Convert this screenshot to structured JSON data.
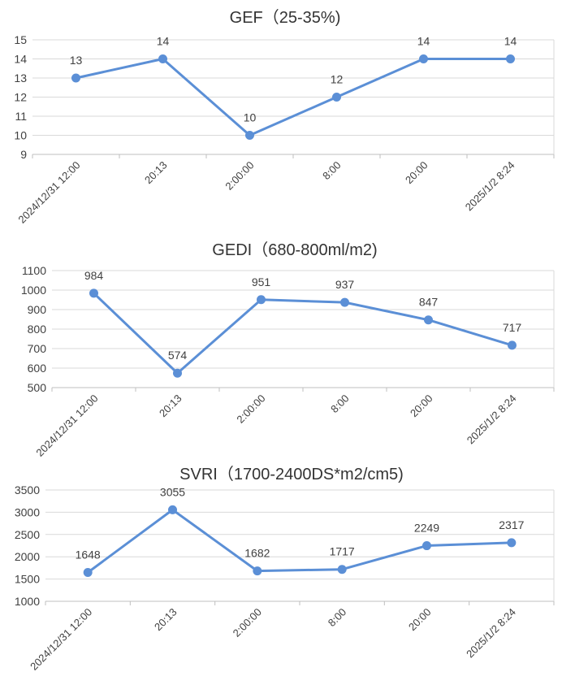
{
  "colors": {
    "series": "#5b8fd6"
  },
  "chart_data": [
    {
      "type": "line",
      "title": "GEF（25-35%)",
      "categories": [
        "2024/12/31 12:00",
        "20:13",
        "2:00:00",
        "8:00",
        "20:00",
        "2025/1/2 8:24"
      ],
      "series": [
        {
          "name": "GEF",
          "values": [
            13,
            14,
            10,
            12,
            14,
            14
          ]
        }
      ],
      "data_labels": [
        "13",
        "14",
        "10",
        "12",
        "14",
        "14"
      ],
      "ylim": [
        9,
        15
      ],
      "yticks": [
        "9",
        "10",
        "11",
        "12",
        "13",
        "14",
        "15"
      ],
      "xlabel": "",
      "ylabel": "",
      "grid": true,
      "legend": "none"
    },
    {
      "type": "line",
      "title": "GEDI（680-800ml/m2)",
      "categories": [
        "2024/12/31 12:00",
        "20:13",
        "2:00:00",
        "8:00",
        "20:00",
        "2025/1/2 8:24"
      ],
      "series": [
        {
          "name": "GEDI",
          "values": [
            984,
            574,
            951,
            937,
            847,
            717
          ]
        }
      ],
      "data_labels": [
        "984",
        "574",
        "951",
        "937",
        "847",
        "717"
      ],
      "ylim": [
        500,
        1100
      ],
      "yticks": [
        "500",
        "600",
        "700",
        "800",
        "900",
        "1000",
        "1100"
      ],
      "xlabel": "",
      "ylabel": "",
      "grid": true,
      "legend": "none"
    },
    {
      "type": "line",
      "title": "SVRI（1700-2400DS*m2/cm5)",
      "categories": [
        "2024/12/31 12:00",
        "20:13",
        "2:00:00",
        "8:00",
        "20:00",
        "2025/1/2 8:24"
      ],
      "series": [
        {
          "name": "SVRI",
          "values": [
            1648,
            3055,
            1682,
            1717,
            2249,
            2317
          ]
        }
      ],
      "data_labels": [
        "1648",
        "3055",
        "1682",
        "1717",
        "2249",
        "2317"
      ],
      "ylim": [
        1000,
        3500
      ],
      "yticks": [
        "1000",
        "1500",
        "2000",
        "2500",
        "3000",
        "3500"
      ],
      "xlabel": "",
      "ylabel": "",
      "grid": true,
      "legend": "none"
    }
  ]
}
